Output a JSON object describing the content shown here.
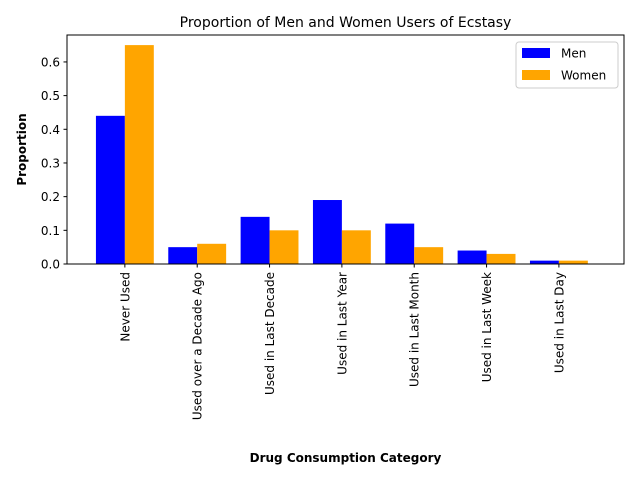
{
  "chart_data": {
    "type": "bar",
    "title": "Proportion of Men and Women Users of Ecstasy",
    "xlabel": "Drug Consumption Category",
    "ylabel": "Proportion",
    "categories": [
      "Never Used",
      "Used over a Decade Ago",
      "Used in Last Decade",
      "Used in Last Year",
      "Used in Last Month",
      "Used in Last Week",
      "Used in Last Day"
    ],
    "series": [
      {
        "name": "Men",
        "color": "#0000ff",
        "values": [
          0.44,
          0.05,
          0.14,
          0.19,
          0.12,
          0.04,
          0.01
        ]
      },
      {
        "name": "Women",
        "color": "#ffa500",
        "values": [
          0.65,
          0.06,
          0.1,
          0.1,
          0.05,
          0.03,
          0.01
        ]
      }
    ],
    "ylim": [
      0,
      0.68
    ],
    "yticks": [
      0.0,
      0.1,
      0.2,
      0.3,
      0.4,
      0.5,
      0.6
    ],
    "ytick_labels": [
      "0.0",
      "0.1",
      "0.2",
      "0.3",
      "0.4",
      "0.5",
      "0.6"
    ],
    "grid": false,
    "legend_position": "top-right"
  }
}
